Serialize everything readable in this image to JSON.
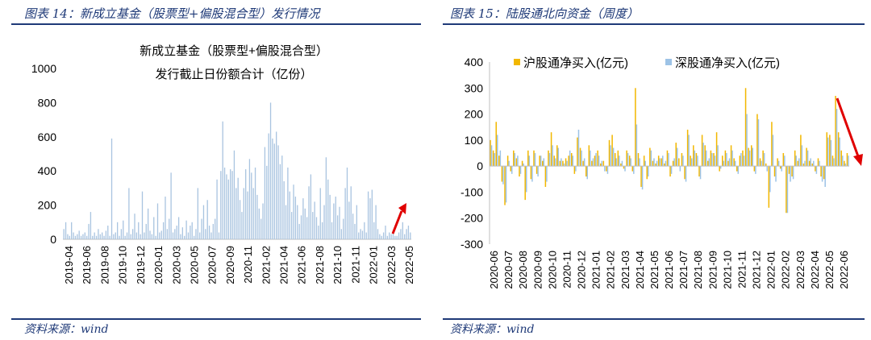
{
  "left": {
    "figure_title": "图表 14：新成立基金（股票型+偏股混合型）发行情况",
    "source": "资料来源：wind",
    "chart_data": {
      "type": "bar",
      "title": "新成立基金（股票型+偏股混合型）",
      "subtitle": "发行截止日份额合计（亿份）",
      "ylim": [
        0,
        1000
      ],
      "y_ticks": [
        0,
        200,
        400,
        600,
        800,
        1000
      ],
      "x_tick_labels": [
        "2019-04",
        "2019-06",
        "2019-08",
        "2019-10",
        "2019-12",
        "2020-01",
        "2020-03",
        "2020-05",
        "2020-07",
        "2020-09",
        "2020-11",
        "2021-02",
        "2021-04",
        "2021-06",
        "2021-08",
        "2021-10",
        "2021-11",
        "2022-01",
        "2022-03",
        "2022-05"
      ],
      "color": "#a9c4e0",
      "values": [
        60,
        100,
        30,
        20,
        100,
        40,
        20,
        30,
        50,
        20,
        30,
        40,
        20,
        90,
        160,
        20,
        40,
        20,
        60,
        30,
        40,
        20,
        50,
        80,
        20,
        590,
        30,
        40,
        100,
        20,
        60,
        110,
        20,
        40,
        300,
        30,
        60,
        150,
        40,
        100,
        30,
        280,
        40,
        90,
        180,
        50,
        30,
        130,
        20,
        210,
        40,
        50,
        100,
        250,
        60,
        120,
        390,
        40,
        60,
        80,
        130,
        30,
        70,
        20,
        110,
        40,
        80,
        100,
        20,
        60,
        300,
        40,
        120,
        200,
        60,
        230,
        80,
        40,
        90,
        120,
        350,
        40,
        400,
        690,
        420,
        380,
        350,
        410,
        400,
        520,
        300,
        360,
        230,
        160,
        300,
        410,
        280,
        470,
        390,
        300,
        420,
        260,
        180,
        120,
        210,
        540,
        430,
        620,
        800,
        590,
        560,
        630,
        550,
        440,
        490,
        340,
        200,
        420,
        280,
        160,
        320,
        250,
        200,
        90,
        140,
        240,
        180,
        130,
        310,
        380,
        160,
        220,
        130,
        80,
        300,
        100,
        200,
        480,
        350,
        260,
        100,
        210,
        250,
        140,
        190,
        60,
        120,
        300,
        420,
        220,
        310,
        150,
        90,
        200,
        40,
        60,
        50,
        100,
        40,
        280,
        240,
        290,
        100,
        200,
        60,
        30,
        20,
        40,
        80,
        20,
        40,
        30,
        50,
        20,
        20,
        40,
        60,
        100,
        30,
        60,
        80,
        40
      ]
    }
  },
  "right": {
    "figure_title": "图表 15：陆股通北向资金（周度）",
    "source": "资料来源：wind",
    "chart_data": {
      "type": "bar",
      "ylim": [
        -300,
        400
      ],
      "y_ticks": [
        -300,
        -200,
        -100,
        0,
        100,
        200,
        300,
        400
      ],
      "x_tick_labels": [
        "2020-06",
        "2020-07",
        "2020-08",
        "2020-09",
        "2020-10",
        "2020-11",
        "2020-12",
        "2021-01",
        "2021-02",
        "2021-03",
        "2021-04",
        "2021-05",
        "2021-06",
        "2021-07",
        "2021-08",
        "2021-09",
        "2021-10",
        "2021-11",
        "2021-12",
        "2022-01",
        "2022-02",
        "2022-03",
        "2022-04",
        "2022-05",
        "2022-06"
      ],
      "series": [
        {
          "name": "沪股通净买入(亿元)",
          "color": "#f2b700",
          "values": [
            100,
            60,
            170,
            40,
            -60,
            -150,
            40,
            -20,
            60,
            30,
            -40,
            20,
            -130,
            60,
            -50,
            60,
            -30,
            40,
            20,
            -80,
            60,
            130,
            40,
            80,
            20,
            20,
            30,
            40,
            50,
            -30,
            110,
            70,
            20,
            -40,
            80,
            20,
            40,
            60,
            10,
            20,
            -20,
            100,
            120,
            50,
            60,
            10,
            -10,
            60,
            40,
            -20,
            300,
            50,
            -80,
            40,
            -50,
            70,
            20,
            10,
            40,
            30,
            10,
            60,
            -40,
            20,
            90,
            30,
            50,
            -50,
            140,
            40,
            80,
            50,
            -40,
            120,
            80,
            20,
            60,
            50,
            130,
            -20,
            40,
            60,
            20,
            80,
            30,
            -20,
            40,
            60,
            300,
            70,
            80,
            -20,
            200,
            30,
            60,
            10,
            -160,
            170,
            -40,
            30,
            -10,
            50,
            -180,
            -30,
            -40,
            60,
            20,
            120,
            10,
            70,
            20,
            10,
            -20,
            30,
            -40,
            -50,
            130,
            120,
            40,
            270,
            130,
            60,
            20,
            50
          ]
        },
        {
          "name": "深股通净买入(亿元)",
          "color": "#9dc3e6",
          "values": [
            80,
            50,
            120,
            60,
            -70,
            -140,
            20,
            -30,
            50,
            40,
            -30,
            10,
            -100,
            40,
            -60,
            50,
            -40,
            40,
            30,
            -60,
            50,
            80,
            30,
            70,
            30,
            10,
            20,
            60,
            40,
            -20,
            140,
            60,
            30,
            -50,
            60,
            30,
            50,
            40,
            20,
            -20,
            -30,
            80,
            70,
            30,
            40,
            20,
            -20,
            50,
            30,
            -30,
            160,
            30,
            -90,
            20,
            -40,
            60,
            30,
            20,
            30,
            40,
            20,
            50,
            -30,
            30,
            70,
            -20,
            40,
            -60,
            120,
            30,
            60,
            40,
            -50,
            90,
            60,
            30,
            50,
            40,
            80,
            -10,
            20,
            50,
            30,
            60,
            20,
            -30,
            50,
            40,
            200,
            60,
            70,
            -30,
            180,
            20,
            50,
            -20,
            -100,
            120,
            -60,
            20,
            -20,
            40,
            -180,
            -60,
            -50,
            40,
            30,
            80,
            20,
            60,
            30,
            20,
            -30,
            20,
            -60,
            -80,
            110,
            100,
            30,
            220,
            110,
            40,
            10,
            40
          ]
        }
      ],
      "legend_position": "top"
    }
  }
}
